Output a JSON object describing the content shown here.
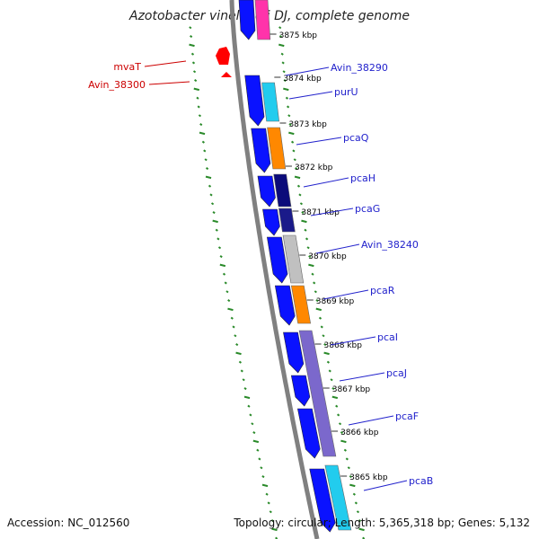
{
  "title": "Azotobacter vinelandii DJ, complete genome",
  "accession": "Accession: NC_012560",
  "topology": "Topology: circular; Length: 5,365,318 bp; Genes: 5,132",
  "colors": {
    "backbone": "#808080",
    "tick": "#2a8a2a",
    "ruler_label": "#000000",
    "gene_label": "#2222cc",
    "reverse_label": "#cc0000",
    "cds_forward": "#0a12ff",
    "cds_reverse": "#ff0000"
  },
  "ruler": [
    {
      "label": "3875 kbp"
    },
    {
      "label": "3874 kbp"
    },
    {
      "label": "3873 kbp"
    },
    {
      "label": "3872 kbp"
    },
    {
      "label": "3871 kbp"
    },
    {
      "label": "3870 kbp"
    },
    {
      "label": "3869 kbp"
    },
    {
      "label": "3868 kbp"
    },
    {
      "label": "3867 kbp"
    },
    {
      "label": "3866 kbp"
    },
    {
      "label": "3865 kbp"
    }
  ],
  "genes_forward": [
    {
      "name": "Avin_38290"
    },
    {
      "name": "purU"
    },
    {
      "name": "pcaQ"
    },
    {
      "name": "pcaH"
    },
    {
      "name": "pcaG"
    },
    {
      "name": "Avin_38240"
    },
    {
      "name": "pcaR"
    },
    {
      "name": "pcaI"
    },
    {
      "name": "pcaJ"
    },
    {
      "name": "pcaF"
    },
    {
      "name": "pcaB"
    }
  ],
  "genes_reverse": [
    {
      "name": "mvaT"
    },
    {
      "name": "Avin_38300"
    }
  ],
  "cog_colors": [
    "#ff33aa",
    "#22ccee",
    "#ff8800",
    "#0b0b7a",
    "#1a1a8a",
    "#c0c0c0",
    "#ff8800",
    "#7b68cc",
    "#7b68cc",
    "#7b68cc",
    "#22ccee"
  ]
}
